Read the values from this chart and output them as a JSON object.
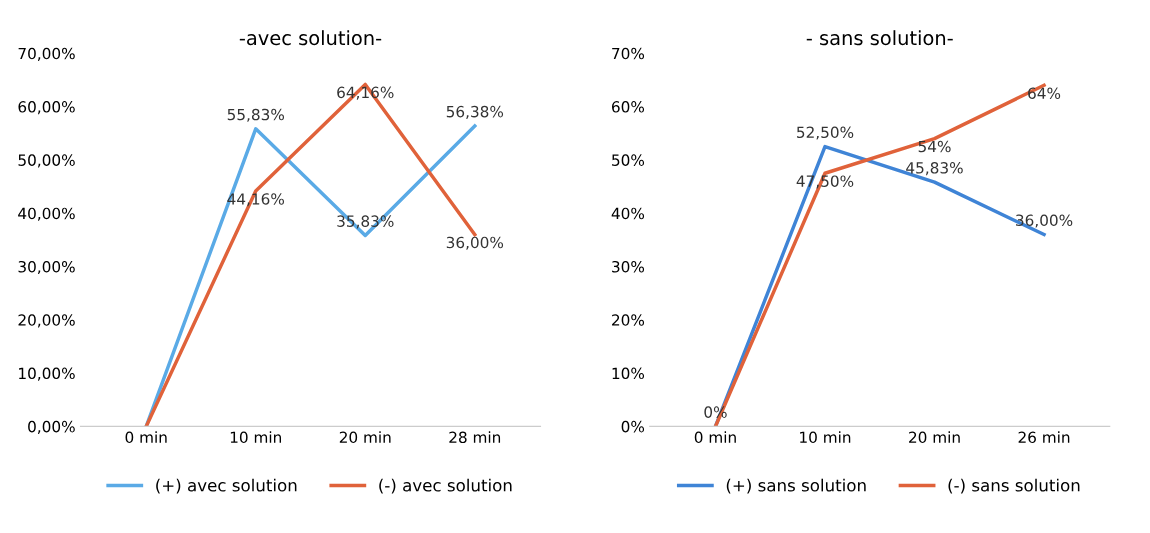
{
  "chart_data": [
    {
      "type": "line",
      "title": "-avec solution-",
      "categories": [
        "0 min",
        "10 min",
        "20 min",
        "28 min"
      ],
      "ylim": [
        0,
        70
      ],
      "yticks": [
        {
          "value": 0,
          "label": "0,00%"
        },
        {
          "value": 10,
          "label": "10,00%"
        },
        {
          "value": 20,
          "label": "20,00%"
        },
        {
          "value": 30,
          "label": "30,00%"
        },
        {
          "value": 40,
          "label": "40,00%"
        },
        {
          "value": 50,
          "label": "50,00%"
        },
        {
          "value": 60,
          "label": "60,00%"
        },
        {
          "value": 70,
          "label": "70,00%"
        }
      ],
      "grid": false,
      "legend": "bottom",
      "marker": "none",
      "line_style": "solid",
      "series": [
        {
          "name": "(+) avec solution",
          "color": "#5aaae6",
          "values": [
            0,
            55.83,
            35.83,
            56.38
          ],
          "value_labels": [
            null,
            "55,83%",
            "35,83%",
            "56,38%"
          ]
        },
        {
          "name": "(-) avec solution",
          "color": "#e0623a",
          "values": [
            0,
            44.16,
            64.16,
            36.0
          ],
          "value_labels": [
            null,
            "44,16%",
            "64,16%",
            "36,00%"
          ]
        }
      ]
    },
    {
      "type": "line",
      "title": "- sans solution-",
      "categories": [
        "0 min",
        "10 min",
        "20 min",
        "26 min"
      ],
      "ylim": [
        0,
        70
      ],
      "yticks": [
        {
          "value": 0,
          "label": "0%"
        },
        {
          "value": 10,
          "label": "10%"
        },
        {
          "value": 20,
          "label": "20%"
        },
        {
          "value": 30,
          "label": "30%"
        },
        {
          "value": 40,
          "label": "40%"
        },
        {
          "value": 50,
          "label": "50%"
        },
        {
          "value": 60,
          "label": "60%"
        },
        {
          "value": 70,
          "label": "70%"
        }
      ],
      "grid": false,
      "legend": "bottom",
      "marker": "none",
      "line_style": "solid",
      "series": [
        {
          "name": "(+) sans solution",
          "color": "#3f84d6",
          "values": [
            0,
            52.5,
            45.83,
            36.0
          ],
          "value_labels": [
            "0%",
            "52,50%",
            "45,83%",
            "36,00%"
          ]
        },
        {
          "name": "(-) sans solution",
          "color": "#e0623a",
          "values": [
            0,
            47.5,
            54,
            64
          ],
          "value_labels": [
            null,
            "47,50%",
            "54%",
            "64%"
          ]
        }
      ]
    }
  ]
}
